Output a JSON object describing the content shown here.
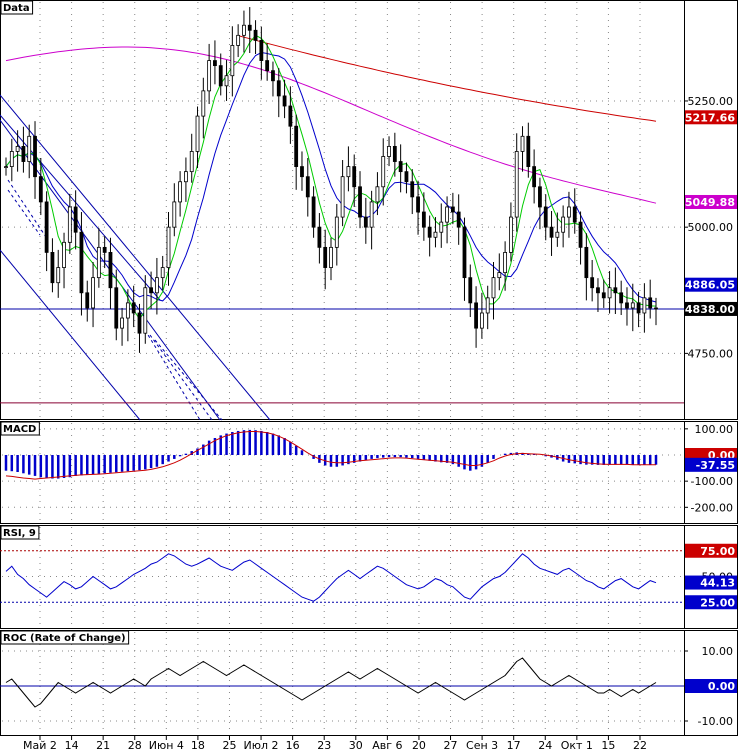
{
  "panels": {
    "price": {
      "label": "Data"
    },
    "macd": {
      "label": "MACD"
    },
    "rsi": {
      "label": "RSI, 9"
    },
    "roc": {
      "label": "ROC (Rate of Change)"
    }
  },
  "chart_data": [
    {
      "type": "candlestick",
      "panel": "price",
      "x_labels": [
        "Май 2",
        "14",
        "21",
        "28",
        "Июн 4",
        "18",
        "25",
        "Июл 2",
        "16",
        "23",
        "30",
        "Авг 6",
        "20",
        "27",
        "Сен 3",
        "17",
        "24",
        "Окт 1",
        "15",
        "22"
      ],
      "y_ticks": [
        4750.0,
        5000.0,
        5250.0
      ],
      "ylim": [
        4620,
        5450
      ],
      "horizontal_line": 4838.0,
      "support_line": 4652,
      "price_tags": [
        {
          "value": 5217.66,
          "text": "5217.66",
          "color": "#cc0000"
        },
        {
          "value": 5049.88,
          "text": "5049.88",
          "color": "#cc00cc"
        },
        {
          "value": 4886.05,
          "text": "4886.05",
          "color": "#0000cc"
        },
        {
          "value": 4838.0,
          "text": "4838.00",
          "color": "#000000"
        }
      ],
      "close_series": [
        5120,
        5150,
        5160,
        5130,
        5180,
        5100,
        5050,
        4950,
        4890,
        4920,
        4970,
        5040,
        4990,
        4870,
        4840,
        4900,
        4960,
        4950,
        4880,
        4800,
        4820,
        4850,
        4830,
        4790,
        4880,
        4870,
        4900,
        4920,
        5000,
        5050,
        5090,
        5110,
        5150,
        5220,
        5270,
        5330,
        5320,
        5280,
        5300,
        5360,
        5380,
        5400,
        5390,
        5370,
        5330,
        5310,
        5290,
        5260,
        5240,
        5200,
        5120,
        5100,
        5060,
        5000,
        4960,
        4920,
        4960,
        5020,
        5100,
        5120,
        5080,
        5020,
        5000,
        5050,
        5080,
        5140,
        5160,
        5130,
        5110,
        5090,
        5060,
        5030,
        5000,
        4980,
        4990,
        5010,
        5040,
        5030,
        5000,
        4900,
        4850,
        4800,
        4830,
        4860,
        4900,
        4910,
        4950,
        5020,
        5150,
        5180,
        5120,
        5080,
        5040,
        5000,
        4980,
        4990,
        5020,
        5040,
        5010,
        4960,
        4900,
        4880,
        4870,
        4860,
        4880,
        4870,
        4850,
        4840,
        4850,
        4830,
        4860,
        4840,
        4838
      ],
      "moving_averages": [
        {
          "name": "",
          "color": "#00cc00"
        },
        {
          "name": "",
          "color": "#0000cc"
        },
        {
          "name": "",
          "color": "#cc00cc"
        },
        {
          "name": "",
          "color": "#cc0000"
        }
      ]
    },
    {
      "type": "histogram+line",
      "panel": "macd",
      "y_ticks": [
        100.0,
        0.0,
        -100.0,
        -200.0
      ],
      "ylim": [
        -260,
        130
      ],
      "value_tags": [
        {
          "value": 0.0,
          "text": "0.00",
          "color": "#cc0000"
        },
        {
          "value": -37.55,
          "text": "-37.55",
          "color": "#0000cc"
        }
      ],
      "histogram": [
        -60,
        -62,
        -65,
        -70,
        -75,
        -80,
        -85,
        -88,
        -90,
        -90,
        -88,
        -85,
        -80,
        -78,
        -76,
        -74,
        -72,
        -70,
        -68,
        -66,
        -64,
        -62,
        -60,
        -58,
        -55,
        -50,
        -45,
        -35,
        -25,
        -15,
        -5,
        5,
        15,
        25,
        40,
        55,
        65,
        75,
        82,
        88,
        92,
        95,
        96,
        95,
        92,
        88,
        82,
        75,
        65,
        50,
        35,
        18,
        0,
        -15,
        -30,
        -40,
        -45,
        -45,
        -40,
        -35,
        -30,
        -25,
        -20,
        -15,
        -12,
        -10,
        -8,
        -8,
        -8,
        -10,
        -12,
        -15,
        -18,
        -22,
        -25,
        -28,
        -30,
        -35,
        -45,
        -55,
        -60,
        -55,
        -45,
        -30,
        -15,
        0,
        5,
        8,
        10,
        8,
        5,
        2,
        0,
        -5,
        -10,
        -18,
        -25,
        -30,
        -32,
        -35,
        -37,
        -37,
        -38,
        -38,
        -37,
        -37,
        -37,
        -37,
        -38,
        -38,
        -37,
        -37,
        -37
      ],
      "signal": [
        -80,
        -82,
        -85,
        -88,
        -90,
        -92,
        -90,
        -88,
        -86,
        -84,
        -82,
        -80,
        -78,
        -76,
        -75,
        -74,
        -73,
        -72,
        -70,
        -68,
        -66,
        -64,
        -62,
        -60,
        -58,
        -55,
        -50,
        -45,
        -38,
        -30,
        -20,
        -8,
        5,
        18,
        30,
        42,
        55,
        65,
        74,
        80,
        85,
        88,
        90,
        90,
        88,
        85,
        80,
        72,
        62,
        50,
        36,
        22,
        8,
        -5,
        -15,
        -22,
        -28,
        -30,
        -30,
        -28,
        -25,
        -22,
        -20,
        -18,
        -16,
        -14,
        -12,
        -11,
        -11,
        -12,
        -14,
        -16,
        -18,
        -20,
        -22,
        -24,
        -26,
        -28,
        -32,
        -36,
        -40,
        -40,
        -36,
        -30,
        -22,
        -12,
        -4,
        2,
        5,
        6,
        5,
        4,
        3,
        0,
        -4,
        -8,
        -13,
        -18,
        -22,
        -26,
        -30,
        -32,
        -34,
        -35,
        -36,
        -36,
        -36,
        -36,
        -37,
        -37,
        -37,
        -37,
        -37
      ]
    },
    {
      "type": "line",
      "panel": "rsi",
      "y_ticks": [
        75.0,
        50.0,
        25.0
      ],
      "ylim": [
        0,
        100
      ],
      "levels": [
        75,
        25
      ],
      "value_tags": [
        {
          "value": 75.0,
          "text": "75.00",
          "color": "#cc0000"
        },
        {
          "value": 44.13,
          "text": "44.13",
          "color": "#0000cc"
        },
        {
          "value": 25.0,
          "text": "25.00",
          "color": "#0000cc"
        }
      ],
      "values": [
        55,
        60,
        52,
        48,
        42,
        38,
        34,
        30,
        35,
        40,
        45,
        42,
        38,
        40,
        45,
        50,
        46,
        42,
        38,
        40,
        44,
        48,
        52,
        55,
        58,
        62,
        64,
        68,
        72,
        70,
        66,
        62,
        60,
        62,
        65,
        68,
        64,
        60,
        58,
        56,
        60,
        64,
        66,
        62,
        58,
        54,
        50,
        46,
        42,
        38,
        34,
        30,
        28,
        26,
        30,
        36,
        42,
        48,
        52,
        56,
        52,
        48,
        52,
        56,
        60,
        58,
        54,
        50,
        46,
        42,
        40,
        38,
        40,
        44,
        48,
        46,
        42,
        40,
        35,
        30,
        28,
        34,
        40,
        44,
        48,
        50,
        54,
        60,
        66,
        72,
        68,
        62,
        58,
        56,
        54,
        52,
        56,
        58,
        54,
        50,
        46,
        44,
        40,
        38,
        42,
        46,
        48,
        44,
        40,
        38,
        42,
        46,
        44
      ],
      "last_value": 44.13
    },
    {
      "type": "line",
      "panel": "roc",
      "y_ticks": [
        10.0,
        0.0,
        -10.0
      ],
      "ylim": [
        -14,
        16
      ],
      "value_tags": [
        {
          "value": 0.0,
          "text": "0.00",
          "color": "#0000cc"
        }
      ],
      "values": [
        1,
        2,
        0,
        -2,
        -4,
        -6,
        -5,
        -3,
        -1,
        1,
        0,
        -1,
        -2,
        -1,
        0,
        1,
        0,
        -1,
        -2,
        -1,
        0,
        1,
        2,
        1,
        0,
        2,
        3,
        4,
        5,
        4,
        3,
        4,
        5,
        6,
        7,
        6,
        5,
        4,
        3,
        4,
        5,
        6,
        5,
        4,
        3,
        2,
        1,
        0,
        -1,
        -2,
        -3,
        -4,
        -3,
        -2,
        -1,
        0,
        1,
        2,
        3,
        4,
        3,
        2,
        3,
        4,
        5,
        4,
        3,
        2,
        1,
        0,
        -1,
        -2,
        -1,
        0,
        1,
        0,
        -1,
        -2,
        -3,
        -4,
        -3,
        -2,
        -1,
        0,
        1,
        2,
        3,
        5,
        7,
        8,
        6,
        4,
        2,
        1,
        0,
        1,
        2,
        3,
        2,
        1,
        0,
        -1,
        -2,
        -2,
        -1,
        -2,
        -3,
        -2,
        -1,
        -2,
        -1,
        0,
        1
      ]
    }
  ]
}
